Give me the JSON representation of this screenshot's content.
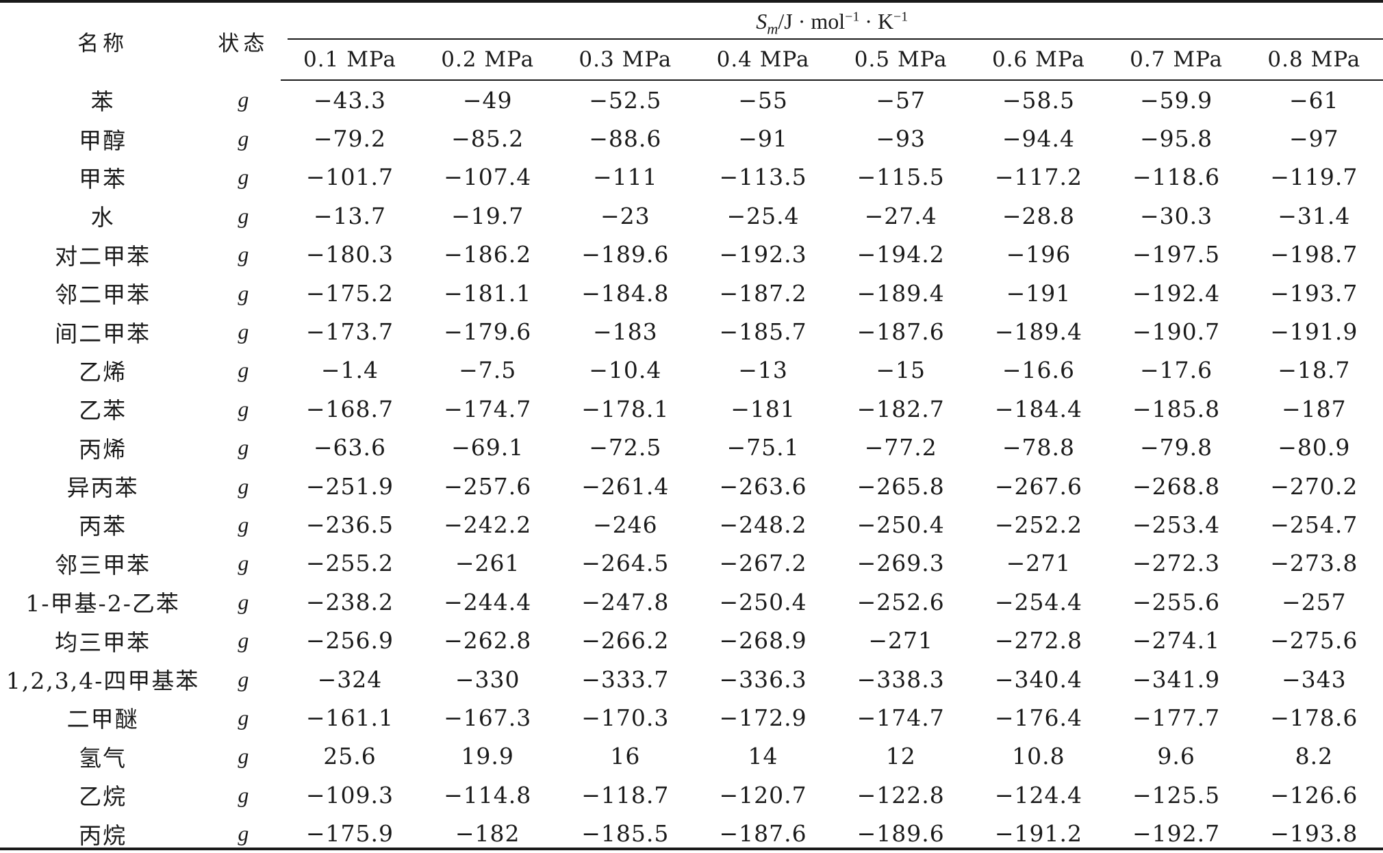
{
  "header": {
    "name_label": "名称",
    "state_label": "状态",
    "unit": {
      "symbol": "S",
      "symbol_sub": "m",
      "unit_text_1": "/J · mol",
      "exp_1": "−1",
      "unit_text_2": " · K",
      "exp_2": "−1"
    },
    "pressures": [
      "0.1 MPa",
      "0.2 MPa",
      "0.3 MPa",
      "0.4 MPa",
      "0.5 MPa",
      "0.6 MPa",
      "0.7 MPa",
      "0.8 MPa"
    ]
  },
  "rows": [
    {
      "name": "苯",
      "state": "g",
      "values": [
        "−43.3",
        "−49",
        "−52.5",
        "−55",
        "−57",
        "−58.5",
        "−59.9",
        "−61"
      ]
    },
    {
      "name": "甲醇",
      "state": "g",
      "values": [
        "−79.2",
        "−85.2",
        "−88.6",
        "−91",
        "−93",
        "−94.4",
        "−95.8",
        "−97"
      ]
    },
    {
      "name": "甲苯",
      "state": "g",
      "values": [
        "−101.7",
        "−107.4",
        "−111",
        "−113.5",
        "−115.5",
        "−117.2",
        "−118.6",
        "−119.7"
      ]
    },
    {
      "name": "水",
      "state": "g",
      "values": [
        "−13.7",
        "−19.7",
        "−23",
        "−25.4",
        "−27.4",
        "−28.8",
        "−30.3",
        "−31.4"
      ]
    },
    {
      "name": "对二甲苯",
      "state": "g",
      "values": [
        "−180.3",
        "−186.2",
        "−189.6",
        "−192.3",
        "−194.2",
        "−196",
        "−197.5",
        "−198.7"
      ]
    },
    {
      "name": "邻二甲苯",
      "state": "g",
      "values": [
        "−175.2",
        "−181.1",
        "−184.8",
        "−187.2",
        "−189.4",
        "−191",
        "−192.4",
        "−193.7"
      ]
    },
    {
      "name": "间二甲苯",
      "state": "g",
      "values": [
        "−173.7",
        "−179.6",
        "−183",
        "−185.7",
        "−187.6",
        "−189.4",
        "−190.7",
        "−191.9"
      ]
    },
    {
      "name": "乙烯",
      "state": "g",
      "values": [
        "−1.4",
        "−7.5",
        "−10.4",
        "−13",
        "−15",
        "−16.6",
        "−17.6",
        "−18.7"
      ]
    },
    {
      "name": "乙苯",
      "state": "g",
      "values": [
        "−168.7",
        "−174.7",
        "−178.1",
        "−181",
        "−182.7",
        "−184.4",
        "−185.8",
        "−187"
      ]
    },
    {
      "name": "丙烯",
      "state": "g",
      "values": [
        "−63.6",
        "−69.1",
        "−72.5",
        "−75.1",
        "−77.2",
        "−78.8",
        "−79.8",
        "−80.9"
      ]
    },
    {
      "name": "异丙苯",
      "state": "g",
      "values": [
        "−251.9",
        "−257.6",
        "−261.4",
        "−263.6",
        "−265.8",
        "−267.6",
        "−268.8",
        "−270.2"
      ]
    },
    {
      "name": "丙苯",
      "state": "g",
      "values": [
        "−236.5",
        "−242.2",
        "−246",
        "−248.2",
        "−250.4",
        "−252.2",
        "−253.4",
        "−254.7"
      ]
    },
    {
      "name": "邻三甲苯",
      "state": "g",
      "values": [
        "−255.2",
        "−261",
        "−264.5",
        "−267.2",
        "−269.3",
        "−271",
        "−272.3",
        "−273.8"
      ]
    },
    {
      "name": "1-甲基-2-乙苯",
      "state": "g",
      "values": [
        "−238.2",
        "−244.4",
        "−247.8",
        "−250.4",
        "−252.6",
        "−254.4",
        "−255.6",
        "−257"
      ]
    },
    {
      "name": "均三甲苯",
      "state": "g",
      "values": [
        "−256.9",
        "−262.8",
        "−266.2",
        "−268.9",
        "−271",
        "−272.8",
        "−274.1",
        "−275.6"
      ]
    },
    {
      "name": "1,2,3,4-四甲基苯",
      "state": "g",
      "values": [
        "−324",
        "−330",
        "−333.7",
        "−336.3",
        "−338.3",
        "−340.4",
        "−341.9",
        "−343"
      ]
    },
    {
      "name": "二甲醚",
      "state": "g",
      "values": [
        "−161.1",
        "−167.3",
        "−170.3",
        "−172.9",
        "−174.7",
        "−176.4",
        "−177.7",
        "−178.6"
      ]
    },
    {
      "name": "氢气",
      "state": "g",
      "values": [
        "25.6",
        "19.9",
        "16",
        "14",
        "12",
        "10.8",
        "9.6",
        "8.2"
      ]
    },
    {
      "name": "乙烷",
      "state": "g",
      "values": [
        "−109.3",
        "−114.8",
        "−118.7",
        "−120.7",
        "−122.8",
        "−124.4",
        "−125.5",
        "−126.6"
      ]
    },
    {
      "name": "丙烷",
      "state": "g",
      "values": [
        "−175.9",
        "−182",
        "−185.5",
        "−187.6",
        "−189.6",
        "−191.2",
        "−192.7",
        "−193.8"
      ]
    }
  ]
}
